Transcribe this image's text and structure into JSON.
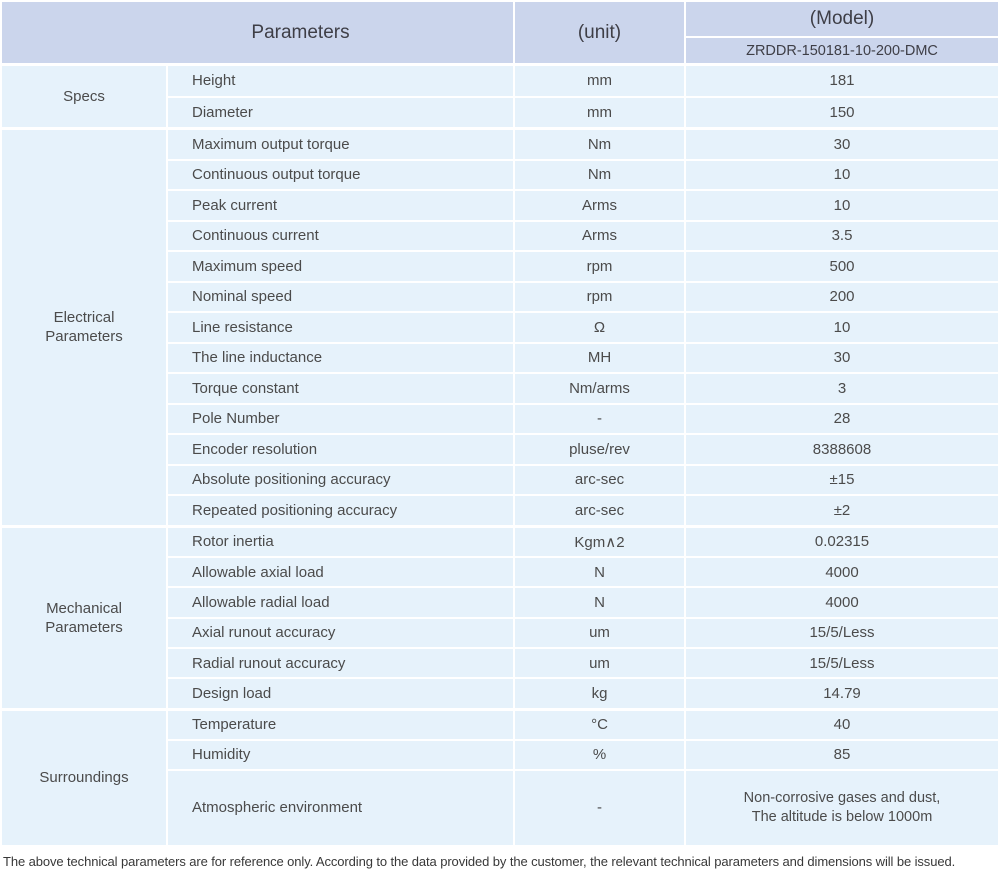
{
  "header": {
    "parameters_label": "Parameters",
    "unit_label": "(unit)",
    "model_label": "(Model)",
    "model_value": "ZRDDR-150181-10-200-DMC"
  },
  "sections": [
    {
      "category": "Specs",
      "rows": [
        {
          "name": "Height",
          "unit": "mm",
          "value": "181"
        },
        {
          "name": "Diameter",
          "unit": "mm",
          "value": "150"
        }
      ]
    },
    {
      "category": "Electrical Parameters",
      "rows": [
        {
          "name": "Maximum output torque",
          "unit": "Nm",
          "value": "30"
        },
        {
          "name": "Continuous output torque",
          "unit": "Nm",
          "value": "10"
        },
        {
          "name": "Peak current",
          "unit": "Arms",
          "value": "10"
        },
        {
          "name": "Continuous current",
          "unit": "Arms",
          "value": "3.5"
        },
        {
          "name": "Maximum speed",
          "unit": "rpm",
          "value": "500"
        },
        {
          "name": "Nominal speed",
          "unit": "rpm",
          "value": "200"
        },
        {
          "name": "Line resistance",
          "unit": "Ω",
          "value": "10"
        },
        {
          "name": "The line inductance",
          "unit": "MH",
          "value": "30"
        },
        {
          "name": "Torque constant",
          "unit": "Nm/arms",
          "value": "3"
        },
        {
          "name": "Pole Number",
          "unit": "-",
          "value": "28"
        },
        {
          "name": "Encoder resolution",
          "unit": "pluse/rev",
          "value": "8388608"
        },
        {
          "name": "Absolute positioning accuracy",
          "unit": "arc-sec",
          "value": "±15"
        },
        {
          "name": "Repeated positioning accuracy",
          "unit": "arc-sec",
          "value": "±2"
        }
      ]
    },
    {
      "category": "Mechanical Parameters",
      "rows": [
        {
          "name": "Rotor inertia",
          "unit": "Kgm∧2",
          "value": "0.02315"
        },
        {
          "name": "Allowable axial load",
          "unit": "N",
          "value": "4000"
        },
        {
          "name": "Allowable radial load",
          "unit": "N",
          "value": "4000"
        },
        {
          "name": "Axial runout accuracy",
          "unit": "um",
          "value": "15/5/Less"
        },
        {
          "name": "Radial runout accuracy",
          "unit": "um",
          "value": "15/5/Less"
        },
        {
          "name": "Design load",
          "unit": "kg",
          "value": "14.79"
        }
      ]
    },
    {
      "category": "Surroundings",
      "rows": [
        {
          "name": "Temperature",
          "unit": "°C",
          "value": "40"
        },
        {
          "name": "Humidity",
          "unit": "%",
          "value": "85"
        },
        {
          "name": "Atmospheric environment",
          "unit": "-",
          "value": "Non-corrosive gases and dust,\nThe altitude is below 1000m",
          "tall": true
        }
      ]
    }
  ],
  "footer": {
    "note": "The above technical parameters are for reference only. According to the data provided by the customer, the relevant technical parameters and dimensions will be issued."
  },
  "colors": {
    "header_bg": "#cbd5ec",
    "row_bg": "#e6f2fb",
    "text": "#4b4b4b"
  }
}
